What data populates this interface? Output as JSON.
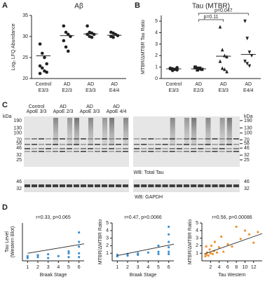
{
  "chart_data": [
    {
      "type": "dot",
      "label": "A",
      "title": "Aβ",
      "ylabel": "Log₂ LFQ Abundance",
      "categories": [
        [
          "Control",
          "E3/3"
        ],
        [
          "AD",
          "E2/3"
        ],
        [
          "AD",
          "E3/3"
        ],
        [
          "AD",
          "E4/4"
        ]
      ],
      "groups": [
        [
          28.2,
          26.0,
          25.0,
          23.5,
          23.0,
          22.5,
          21.8,
          21.5,
          21.2
        ],
        [
          32.5,
          31.0,
          30.5,
          30.0,
          29.0,
          27.5,
          26.5
        ],
        [
          32.5,
          31.0,
          30.8,
          30.5,
          30.5,
          30.0,
          29.8
        ],
        [
          31.0,
          30.8,
          30.5,
          30.2,
          30.0,
          29.8
        ]
      ],
      "means": [
        25.4,
        30.2,
        30.6,
        30.3
      ],
      "markers": [
        "circle",
        "circle",
        "circle",
        "circle"
      ],
      "color": "#222222",
      "ylim": [
        20,
        35
      ],
      "yticks": [
        20,
        25,
        30,
        35
      ]
    },
    {
      "type": "dot",
      "label": "B",
      "title": "Tau (MTBR)",
      "ylabel": "MTBR/ΔMTBR Tau Ratio",
      "categories": [
        [
          "Control",
          "E3/3"
        ],
        [
          "AD",
          "E2/3"
        ],
        [
          "AD",
          "E3/3"
        ],
        [
          "AD",
          "E4/4"
        ]
      ],
      "groups": [
        [
          0.9,
          0.85,
          0.8,
          0.75,
          0.9,
          0.7,
          0.8,
          0.95,
          0.85
        ],
        [
          1.0,
          0.9,
          0.85,
          0.8,
          0.95,
          0.75,
          0.9
        ],
        [
          4.5,
          2.5,
          2.0,
          1.9,
          1.5,
          0.9,
          0.8,
          0.6
        ],
        [
          5.0,
          3.5,
          2.3,
          2.0,
          1.5,
          1.3,
          1.1
        ]
      ],
      "means": [
        0.85,
        0.85,
        1.95,
        2.1
      ],
      "markers": [
        "circle",
        "square",
        "triangle",
        "triangle-down"
      ],
      "color": "#222222",
      "annotations": [
        "p=0.047",
        "p=0.11"
      ],
      "ylim": [
        0,
        5.5
      ],
      "yticks": [
        0,
        1,
        2,
        3,
        4,
        5
      ]
    },
    {
      "type": "scatter",
      "label": "D",
      "title": "r=0.33, p=0.065",
      "ylabel": [
        "Tau Level",
        "(Western Blot)"
      ],
      "xlabel": "Braak Stage",
      "x": [
        1,
        1,
        2,
        2,
        3,
        3,
        4,
        5,
        5,
        5,
        6,
        6,
        6,
        6,
        6
      ],
      "values": [
        0.5,
        0.3,
        0.6,
        0.4,
        0.3,
        0.7,
        0.5,
        1.0,
        0.4,
        0.8,
        3.0,
        2.0,
        1.5,
        0.8,
        0.4
      ],
      "color": "#3d8fd1",
      "trendline": {
        "x": [
          1,
          6.5
        ],
        "y": [
          0.8,
          1.8
        ]
      },
      "xlim": [
        0.5,
        6.5
      ],
      "xticks": [
        1,
        2,
        3,
        4,
        5,
        6
      ],
      "ylim": [
        0,
        4
      ]
    },
    {
      "type": "scatter",
      "title": "r=0.47, p=0.0066",
      "ylabel": [
        "MTBR/ΔMTBR Ratio"
      ],
      "xlabel": "Braak Stage",
      "x": [
        1,
        1,
        2,
        2,
        3,
        3,
        4,
        5,
        5,
        5,
        6,
        6,
        6,
        6,
        6,
        6
      ],
      "values": [
        0.8,
        0.6,
        0.9,
        0.7,
        0.8,
        1.0,
        1.1,
        1.2,
        0.9,
        2.0,
        4.5,
        3.5,
        2.5,
        1.8,
        1.2,
        0.9
      ],
      "color": "#3d8fd1",
      "trendline": {
        "x": [
          1,
          6.5
        ],
        "y": [
          0.7,
          2.2
        ]
      },
      "xlim": [
        0.5,
        6.5
      ],
      "xticks": [
        1,
        2,
        3,
        4,
        5,
        6
      ],
      "ylim": [
        0,
        5
      ],
      "yticks": [
        1,
        2,
        3,
        4,
        5
      ]
    },
    {
      "type": "scatter",
      "title": "r=0.56, p=0.00086",
      "ylabel": [
        "MTBR/ΔMTBR Ratio"
      ],
      "xlabel": "Tau Western",
      "x": [
        1,
        1.2,
        1.5,
        1.8,
        2,
        2.2,
        2.5,
        2.8,
        3,
        3.5,
        4,
        4.5,
        5,
        6,
        7,
        8,
        9,
        10,
        11,
        12,
        13,
        1,
        0.8
      ],
      "values": [
        0.8,
        1.1,
        0.7,
        1.5,
        1.0,
        2.0,
        0.9,
        1.3,
        2.5,
        1.1,
        1.8,
        3.2,
        1.2,
        2.2,
        1.9,
        4.5,
        2.9,
        4.0,
        3.5,
        2.4,
        3.8,
        1.9,
        0.6
      ],
      "color": "#f0922e",
      "trendline": {
        "x": [
          0.5,
          14
        ],
        "y": [
          0.9,
          3.6
        ]
      },
      "xlim": [
        0,
        14
      ],
      "xticks": [
        2,
        4,
        6,
        8,
        10,
        12
      ],
      "ylim": [
        0,
        5
      ],
      "yticks": [
        1,
        2,
        3,
        4,
        5
      ]
    }
  ],
  "blot": {
    "label": "C",
    "unit": "kDa",
    "groups": [
      [
        "Control",
        "ApoE 3/3"
      ],
      [
        "AD",
        "ApoE 2/3"
      ],
      [
        "AD",
        "ApoE 3/3"
      ],
      [
        "AD",
        "ApoE 4/4"
      ]
    ],
    "markers": [
      190,
      130,
      100,
      70,
      58,
      46,
      32,
      25
    ],
    "tau_label": "WB: Total Tau",
    "gapdh_markers": [
      46,
      32
    ],
    "gapdh_label": "WB: GAPDH"
  }
}
